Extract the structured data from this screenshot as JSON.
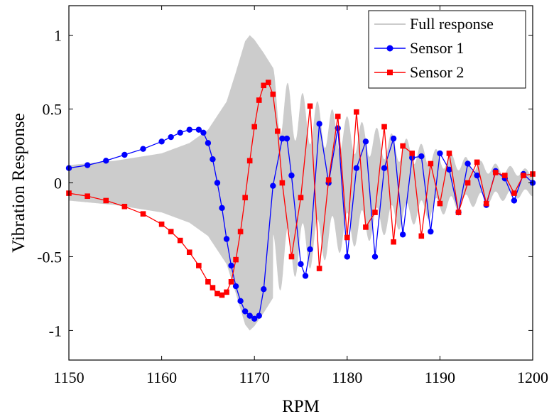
{
  "chart_data": {
    "type": "line",
    "xlabel": "RPM",
    "ylabel": "Vibration Response",
    "xlim": [
      1150,
      1200
    ],
    "ylim": [
      -1.2,
      1.2
    ],
    "xticks": [
      1150,
      1160,
      1170,
      1180,
      1190,
      1200
    ],
    "yticks": [
      -1,
      -0.5,
      0,
      0.5,
      1
    ],
    "xtick_labels": [
      "1150",
      "1160",
      "1170",
      "1180",
      "1190",
      "1200"
    ],
    "ytick_labels": [
      "-1",
      "-0.5",
      "0",
      "0.5",
      "1"
    ],
    "grid": false,
    "legend_position": "top-right",
    "series": [
      {
        "name": "Full response",
        "kind": "band",
        "color": "#cccccc",
        "x": [
          1150,
          1155,
          1160,
          1163,
          1165,
          1167,
          1168,
          1169,
          1169.5,
          1170,
          1171,
          1172,
          1174,
          1176,
          1178,
          1180,
          1185,
          1190,
          1195,
          1200
        ],
        "envelope": [
          0.12,
          0.15,
          0.2,
          0.27,
          0.36,
          0.55,
          0.75,
          0.96,
          1.0,
          0.97,
          0.88,
          0.78,
          0.65,
          0.58,
          0.51,
          0.45,
          0.33,
          0.22,
          0.14,
          0.09
        ]
      },
      {
        "name": "Sensor 1",
        "color": "#0000ff",
        "marker": "circle",
        "x": [
          1150,
          1152,
          1154,
          1156,
          1158,
          1160,
          1161,
          1162,
          1163,
          1164,
          1164.5,
          1165,
          1165.5,
          1166,
          1166.5,
          1167,
          1167.5,
          1168,
          1168.5,
          1169,
          1169.5,
          1170,
          1170.5,
          1171,
          1172,
          1173,
          1173.5,
          1174,
          1175,
          1175.5,
          1176,
          1177,
          1178,
          1179,
          1180,
          1181,
          1182,
          1183,
          1184,
          1185,
          1186,
          1187,
          1188,
          1189,
          1190,
          1191,
          1192,
          1193,
          1194,
          1195,
          1196,
          1197,
          1198,
          1199,
          1200
        ],
        "y": [
          0.1,
          0.12,
          0.15,
          0.19,
          0.23,
          0.28,
          0.31,
          0.34,
          0.36,
          0.36,
          0.34,
          0.27,
          0.16,
          0.0,
          -0.17,
          -0.38,
          -0.56,
          -0.7,
          -0.8,
          -0.87,
          -0.9,
          -0.92,
          -0.9,
          -0.72,
          -0.02,
          0.3,
          0.3,
          0.05,
          -0.55,
          -0.63,
          -0.45,
          0.4,
          0.0,
          0.37,
          -0.5,
          0.1,
          0.28,
          -0.5,
          0.1,
          0.3,
          -0.35,
          0.17,
          0.18,
          -0.33,
          0.2,
          0.09,
          -0.2,
          0.13,
          0.05,
          -0.15,
          0.08,
          0.03,
          -0.12,
          0.06,
          0.0
        ]
      },
      {
        "name": "Sensor 2",
        "color": "#ff0000",
        "marker": "square",
        "x": [
          1150,
          1152,
          1154,
          1156,
          1158,
          1160,
          1161,
          1162,
          1163,
          1164,
          1165,
          1165.5,
          1166,
          1166.5,
          1167,
          1167.5,
          1168,
          1168.5,
          1169,
          1169.5,
          1170,
          1170.5,
          1171,
          1171.5,
          1172,
          1172.5,
          1173,
          1174,
          1175,
          1176,
          1177,
          1178,
          1179,
          1180,
          1181,
          1182,
          1183,
          1184,
          1185,
          1186,
          1187,
          1188,
          1189,
          1190,
          1191,
          1192,
          1193,
          1194,
          1195,
          1196,
          1197,
          1198,
          1199,
          1200
        ],
        "y": [
          -0.07,
          -0.09,
          -0.12,
          -0.16,
          -0.21,
          -0.28,
          -0.33,
          -0.39,
          -0.47,
          -0.56,
          -0.67,
          -0.71,
          -0.75,
          -0.76,
          -0.74,
          -0.67,
          -0.52,
          -0.33,
          -0.1,
          0.15,
          0.38,
          0.56,
          0.66,
          0.68,
          0.6,
          0.35,
          0.0,
          -0.5,
          -0.1,
          0.52,
          -0.58,
          0.02,
          0.45,
          -0.37,
          0.48,
          -0.3,
          -0.2,
          0.38,
          -0.4,
          0.25,
          0.2,
          -0.36,
          0.13,
          -0.14,
          0.2,
          -0.2,
          0.0,
          0.14,
          -0.14,
          0.07,
          0.05,
          -0.07,
          0.05,
          0.06
        ]
      }
    ]
  }
}
